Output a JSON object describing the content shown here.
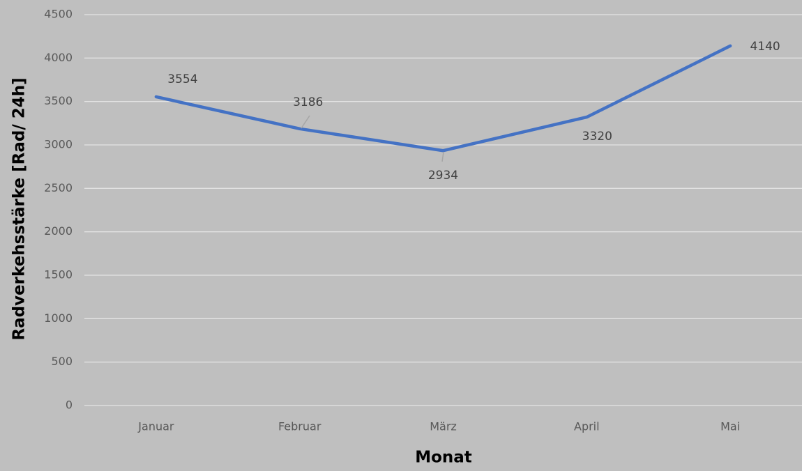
{
  "chart_data": {
    "type": "line",
    "x_label": "Monat",
    "y_label": "Radverkehsstärke [Rad/ 24h]",
    "categories": [
      "Januar",
      "Februar",
      "März",
      "April",
      "Mai"
    ],
    "series": [
      {
        "name": "Radverkehsstärke",
        "color": "#4472c4",
        "values": [
          3554,
          3186,
          2934,
          3320,
          4140
        ]
      }
    ],
    "ylim": [
      0,
      4500
    ],
    "yticks": [
      0,
      500,
      1000,
      1500,
      2000,
      2500,
      3000,
      3500,
      4000,
      4500
    ],
    "grid": true
  }
}
